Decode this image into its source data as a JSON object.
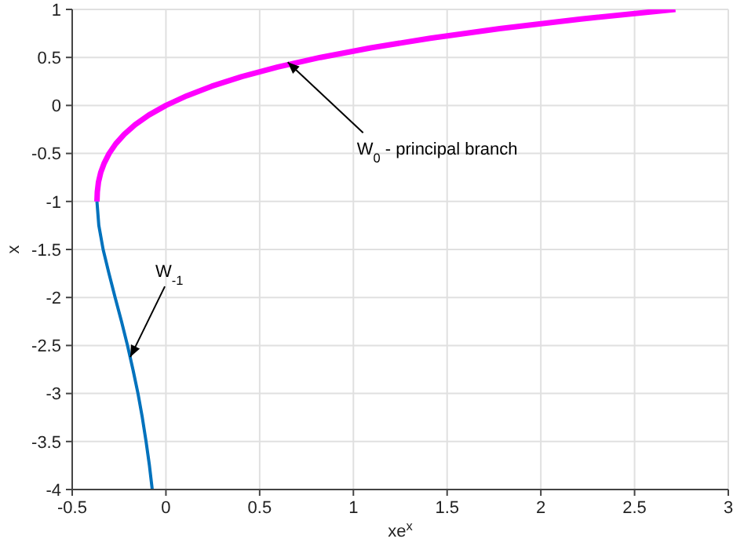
{
  "chart_data": {
    "type": "line",
    "xlabel": "xe$^{x}$",
    "ylabel": "x",
    "xlim": [
      -0.5,
      3
    ],
    "xticks": [
      -0.5,
      0,
      0.5,
      1,
      1.5,
      2,
      2.5,
      3
    ],
    "ylim": [
      -4,
      1
    ],
    "yticks": [
      -4,
      -3.5,
      -3,
      -2.5,
      -2,
      -1.5,
      -1,
      -0.5,
      0,
      0.5,
      1
    ],
    "grid": true,
    "marker": "none",
    "line_style": "solid",
    "series": [
      {
        "color": "#ff00ff",
        "x": [
          -0.368,
          -0.366,
          -0.36,
          -0.348,
          -0.329,
          -0.303,
          -0.268,
          -0.222,
          -0.164,
          -0.091,
          0,
          0.111,
          0.244,
          0.405,
          0.597,
          0.824,
          1.093,
          1.41,
          1.78,
          2.214,
          2.718
        ],
        "values": [
          -1,
          -0.9,
          -0.8,
          -0.7,
          -0.6,
          -0.5,
          -0.4,
          -0.3,
          -0.2,
          -0.1,
          0,
          0.1,
          0.2,
          0.3,
          0.4,
          0.5,
          0.6,
          0.7,
          0.8,
          0.9,
          1
        ]
      },
      {
        "color": "#0072bd",
        "x": [
          -0.073,
          -0.088,
          -0.106,
          -0.126,
          -0.149,
          -0.176,
          -0.205,
          -0.237,
          -0.271,
          -0.304,
          -0.335,
          -0.358,
          -0.368
        ],
        "values": [
          -4,
          -3.75,
          -3.5,
          -3.25,
          -3,
          -2.75,
          -2.5,
          -2.25,
          -2,
          -1.75,
          -1.5,
          -1.25,
          -1
        ]
      }
    ],
    "annotations": [
      {
        "text": "W$_{0}$ - principal branch",
        "x": 0.65,
        "y": 0.45
      },
      {
        "text": "W$_{-1}$",
        "x": -0.19,
        "y": -2.62
      }
    ]
  }
}
